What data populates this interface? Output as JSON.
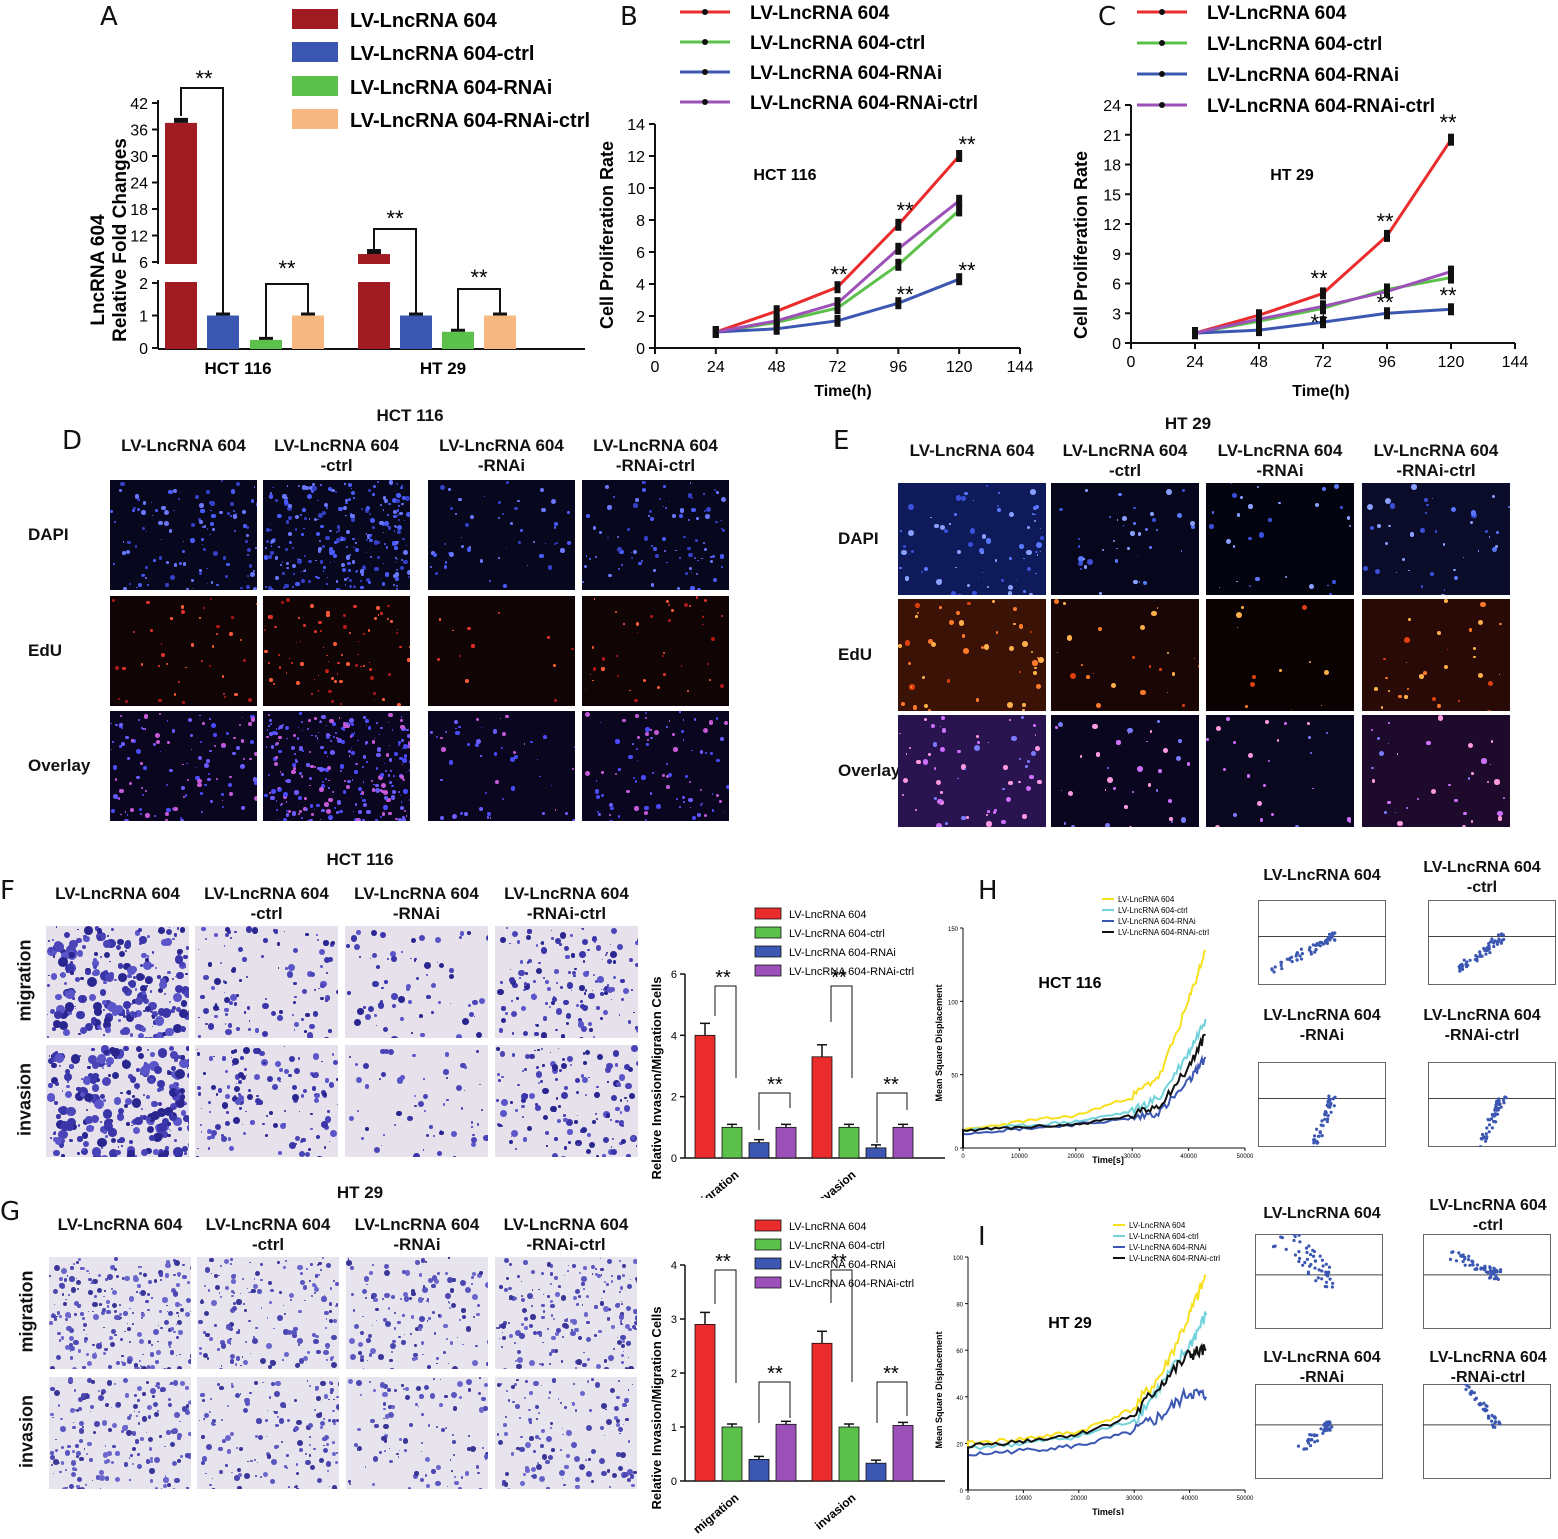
{
  "panel_letters": [
    "A",
    "B",
    "C",
    "D",
    "E",
    "F",
    "G",
    "H",
    "I"
  ],
  "colors": {
    "red": "#ea2c2c",
    "darkred": "#a11c22",
    "green": "#5cc14a",
    "blue": "#3b57b2",
    "purple": "#9b51b8",
    "peach": "#f6b880",
    "yellow": "#f7e01e",
    "cyan": "#72d3dc",
    "black": "#111111"
  },
  "sig": "**",
  "panelA": {
    "legend": [
      "LV-LncRNA 604",
      "LV-LncRNA 604-ctrl",
      "LV-LncRNA 604-RNAi",
      "LV-LncRNA 604-RNAi-ctrl"
    ],
    "ylabel1": "LncRNA 604",
    "ylabel2": "Relative Fold Changes",
    "ticks_upper": [
      "42",
      "36",
      "30",
      "24",
      "18",
      "12",
      "6"
    ],
    "ticks_lower": [
      "2",
      "1",
      "0"
    ],
    "groups": [
      "HCT 116",
      "HT 29"
    ]
  },
  "panelB": {
    "legend": [
      "LV-LncRNA 604",
      "LV-LncRNA 604-ctrl",
      "LV-LncRNA 604-RNAi",
      "LV-LncRNA 604-RNAi-ctrl"
    ],
    "inner": "HCT 116",
    "ylabel": "Cell Proliferation Rate",
    "xlabel": "Time(h)",
    "yticks": [
      "0",
      "2",
      "4",
      "6",
      "8",
      "10",
      "12",
      "14"
    ],
    "xticks": [
      "0",
      "24",
      "48",
      "72",
      "96",
      "120",
      "144"
    ]
  },
  "panelC": {
    "legend": [
      "LV-LncRNA 604",
      "LV-LncRNA 604-ctrl",
      "LV-LncRNA 604-RNAi",
      "LV-LncRNA 604-RNAi-ctrl"
    ],
    "inner": "HT 29",
    "ylabel": "Cell Proliferation Rate",
    "xlabel": "Time(h)",
    "yticks": [
      "0",
      "3",
      "6",
      "9",
      "12",
      "15",
      "18",
      "21",
      "24"
    ],
    "xticks": [
      "0",
      "24",
      "48",
      "72",
      "96",
      "120",
      "144"
    ]
  },
  "panelD": {
    "title": "HCT 116",
    "cols": [
      "LV-LncRNA 604",
      "LV-LncRNA 604\n-ctrl",
      "LV-LncRNA 604\n-RNAi",
      "LV-LncRNA 604\n-RNAi-ctrl"
    ],
    "rows": [
      "DAPI",
      "EdU",
      "Overlay"
    ]
  },
  "panelE": {
    "title": "HT 29",
    "cols": [
      "LV-LncRNA 604",
      "LV-LncRNA 604\n-ctrl",
      "LV-LncRNA 604\n-RNAi",
      "LV-LncRNA 604\n-RNAi-ctrl"
    ],
    "rows": [
      "DAPI",
      "EdU",
      "Overlay"
    ]
  },
  "panelF": {
    "title": "HCT 116",
    "cols": [
      "LV-LncRNA 604",
      "LV-LncRNA 604\n-ctrl",
      "LV-LncRNA 604\n-RNAi",
      "LV-LncRNA 604\n-RNAi-ctrl"
    ],
    "rows": [
      "migration",
      "invasion"
    ],
    "legend": [
      "LV-LncRNA 604",
      "LV-LncRNA 604-ctrl",
      "LV-LncRNA 604-RNAi",
      "LV-LncRNA 604-RNAi-ctrl"
    ],
    "ylabel": "Relative Invasion/Migration Cells",
    "yticks": [
      "0",
      "2",
      "4",
      "6"
    ],
    "groups": [
      "migration",
      "invasion"
    ]
  },
  "panelG": {
    "title": "HT 29",
    "cols": [
      "LV-LncRNA 604",
      "LV-LncRNA 604\n-ctrl",
      "LV-LncRNA 604\n-RNAi",
      "LV-LncRNA 604\n-RNAi-ctrl"
    ],
    "rows": [
      "migration",
      "invasion"
    ],
    "legend": [
      "LV-LncRNA 604",
      "LV-LncRNA 604-ctrl",
      "LV-LncRNA 604-RNAi",
      "LV-LncRNA 604-RNAi-ctrl"
    ],
    "ylabel": "Relative Invasion/Migration Cells",
    "yticks": [
      "0",
      "1",
      "2",
      "3",
      "4"
    ],
    "groups": [
      "migration",
      "invasion"
    ]
  },
  "panelH": {
    "inner": "HCT 116",
    "legend": [
      "LV-LncRNA 604",
      "LV-LncRNA 604-ctrl",
      "LV-LncRNA 604-RNAi",
      "LV-LncRNA 604-RNAi-ctrl"
    ],
    "ylabel": "Mean Square Displacement",
    "xlabel": "Time[s]",
    "yticks": [
      "0",
      "50",
      "100",
      "150"
    ],
    "xticks": [
      "0",
      "10000",
      "20000",
      "30000",
      "40000",
      "50000"
    ],
    "tracks": [
      "LV-LncRNA 604",
      "LV-LncRNA 604\n-ctrl",
      "LV-LncRNA 604\n-RNAi",
      "LV-LncRNA 604\n-RNAi-ctrl"
    ]
  },
  "panelI": {
    "inner": "HT 29",
    "legend": [
      "LV-LncRNA 604",
      "LV-LncRNA 604-ctrl",
      "LV-LncRNA 604-RNAi",
      "LV-LncRNA 604-RNAi-ctrl"
    ],
    "ylabel": "Mean Square Displacement",
    "xlabel": "Time[s]",
    "yticks": [
      "0",
      "20",
      "40",
      "60",
      "80",
      "100"
    ],
    "xticks": [
      "0",
      "10000",
      "20000",
      "30000",
      "40000",
      "50000"
    ],
    "tracks": [
      "LV-LncRNA 604",
      "LV-LncRNA 604\n-ctrl",
      "LV-LncRNA 604\n-RNAi",
      "LV-LncRNA 604\n-RNAi-ctrl"
    ]
  },
  "chart_data": [
    {
      "id": "A",
      "type": "bar",
      "categories": [
        "HCT 116",
        "HT 29"
      ],
      "series": [
        {
          "name": "LV-LncRNA 604",
          "values": [
            37.5,
            7.8
          ]
        },
        {
          "name": "LV-LncRNA 604-ctrl",
          "values": [
            1.0,
            1.0
          ]
        },
        {
          "name": "LV-LncRNA 604-RNAi",
          "values": [
            0.25,
            0.5
          ]
        },
        {
          "name": "LV-LncRNA 604-RNAi-ctrl",
          "values": [
            1.0,
            1.0
          ]
        }
      ],
      "broken_axis": [
        2,
        6
      ],
      "ylabel": "LncRNA 604 Relative Fold Changes"
    },
    {
      "id": "B",
      "type": "line",
      "x": [
        24,
        48,
        72,
        96,
        120
      ],
      "series": [
        {
          "name": "LV-LncRNA 604",
          "values": [
            1.0,
            2.3,
            3.8,
            7.7,
            12.0
          ]
        },
        {
          "name": "LV-LncRNA 604-ctrl",
          "values": [
            1.0,
            1.6,
            2.5,
            5.2,
            8.6
          ]
        },
        {
          "name": "LV-LncRNA 604-RNAi",
          "values": [
            1.0,
            1.2,
            1.7,
            2.8,
            4.3
          ]
        },
        {
          "name": "LV-LncRNA 604-RNAi-ctrl",
          "values": [
            1.0,
            1.7,
            2.8,
            6.2,
            9.2
          ]
        }
      ],
      "xlim": [
        0,
        144
      ],
      "ylim": [
        0,
        14
      ],
      "xlabel": "Time(h)",
      "ylabel": "Cell Proliferation Rate"
    },
    {
      "id": "C",
      "type": "line",
      "x": [
        24,
        48,
        72,
        96,
        120
      ],
      "series": [
        {
          "name": "LV-LncRNA 604",
          "values": [
            1.0,
            2.8,
            5.0,
            10.8,
            20.5
          ]
        },
        {
          "name": "LV-LncRNA 604-ctrl",
          "values": [
            1.0,
            2.2,
            3.5,
            5.4,
            6.6
          ]
        },
        {
          "name": "LV-LncRNA 604-RNAi",
          "values": [
            1.0,
            1.3,
            2.1,
            3.0,
            3.4
          ]
        },
        {
          "name": "LV-LncRNA 604-RNAi-ctrl",
          "values": [
            1.0,
            2.4,
            3.7,
            5.2,
            7.2
          ]
        }
      ],
      "xlim": [
        0,
        144
      ],
      "ylim": [
        0,
        24
      ],
      "xlabel": "Time(h)",
      "ylabel": "Cell Proliferation Rate"
    },
    {
      "id": "F",
      "type": "bar",
      "categories": [
        "migration",
        "invasion"
      ],
      "series": [
        {
          "name": "LV-LncRNA 604",
          "values": [
            4.0,
            3.3
          ]
        },
        {
          "name": "LV-LncRNA 604-ctrl",
          "values": [
            1.0,
            1.0
          ]
        },
        {
          "name": "LV-LncRNA 604-RNAi",
          "values": [
            0.5,
            0.33
          ]
        },
        {
          "name": "LV-LncRNA 604-RNAi-ctrl",
          "values": [
            1.0,
            1.0
          ]
        }
      ],
      "ylim": [
        0,
        6
      ],
      "ylabel": "Relative Invasion/Migration Cells"
    },
    {
      "id": "G",
      "type": "bar",
      "categories": [
        "migration",
        "invasion"
      ],
      "series": [
        {
          "name": "LV-LncRNA 604",
          "values": [
            2.9,
            2.55
          ]
        },
        {
          "name": "LV-LncRNA 604-ctrl",
          "values": [
            1.0,
            1.0
          ]
        },
        {
          "name": "LV-LncRNA 604-RNAi",
          "values": [
            0.4,
            0.33
          ]
        },
        {
          "name": "LV-LncRNA 604-RNAi-ctrl",
          "values": [
            1.05,
            1.03
          ]
        }
      ],
      "ylim": [
        0,
        4
      ],
      "ylabel": "Relative Invasion/Migration Cells"
    },
    {
      "id": "H",
      "type": "line",
      "x": [
        0,
        10000,
        20000,
        30000,
        35000,
        40000,
        43000
      ],
      "series": [
        {
          "name": "LV-LncRNA 604",
          "values": [
            12,
            18,
            22,
            35,
            50,
            100,
            135
          ]
        },
        {
          "name": "LV-LncRNA 604-ctrl",
          "values": [
            12,
            15,
            18,
            25,
            35,
            65,
            88
          ]
        },
        {
          "name": "LV-LncRNA 604-RNAi",
          "values": [
            10,
            13,
            16,
            20,
            25,
            45,
            62
          ]
        },
        {
          "name": "LV-LncRNA 604-RNAi-ctrl",
          "values": [
            12,
            14,
            16,
            22,
            30,
            55,
            77
          ]
        }
      ],
      "xlim": [
        0,
        50000
      ],
      "ylim": [
        0,
        150
      ],
      "xlabel": "Time[s]",
      "ylabel": "Mean Square Displacement"
    },
    {
      "id": "I",
      "type": "line",
      "x": [
        0,
        10000,
        20000,
        30000,
        35000,
        40000,
        43000
      ],
      "series": [
        {
          "name": "LV-LncRNA 604",
          "values": [
            20,
            22,
            25,
            35,
            50,
            75,
            92
          ]
        },
        {
          "name": "LV-LncRNA 604-ctrl",
          "values": [
            18,
            20,
            23,
            30,
            45,
            62,
            75
          ]
        },
        {
          "name": "LV-LncRNA 604-RNAi",
          "values": [
            15,
            17,
            19,
            25,
            32,
            42,
            40
          ]
        },
        {
          "name": "LV-LncRNA 604-RNAi-ctrl",
          "values": [
            19,
            21,
            24,
            32,
            46,
            58,
            60
          ]
        }
      ],
      "xlim": [
        0,
        50000
      ],
      "ylim": [
        0,
        100
      ],
      "xlabel": "Time[s]",
      "ylabel": "Mean Square Displacement"
    }
  ]
}
